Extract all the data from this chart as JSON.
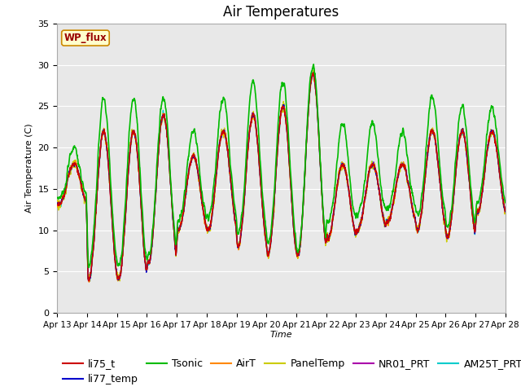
{
  "title": "Air Temperatures",
  "xlabel": "Time",
  "ylabel": "Air Temperature (C)",
  "ylim": [
    0,
    35
  ],
  "yticks": [
    0,
    5,
    10,
    15,
    20,
    25,
    30,
    35
  ],
  "x_tick_labels": [
    "Apr 13",
    "Apr 14",
    "Apr 15",
    "Apr 16",
    "Apr 17",
    "Apr 18",
    "Apr 19",
    "Apr 20",
    "Apr 21",
    "Apr 22",
    "Apr 23",
    "Apr 24",
    "Apr 25",
    "Apr 26",
    "Apr 27",
    "Apr 28"
  ],
  "series": {
    "li75_t": {
      "color": "#cc0000",
      "lw": 1.0,
      "zorder": 3
    },
    "li77_temp": {
      "color": "#0000cc",
      "lw": 1.0,
      "zorder": 3
    },
    "Tsonic": {
      "color": "#00bb00",
      "lw": 1.2,
      "zorder": 4
    },
    "AirT": {
      "color": "#ff8800",
      "lw": 1.0,
      "zorder": 3
    },
    "PanelTemp": {
      "color": "#cccc00",
      "lw": 1.0,
      "zorder": 3
    },
    "NR01_PRT": {
      "color": "#aa00aa",
      "lw": 1.0,
      "zorder": 3
    },
    "AM25T_PRT": {
      "color": "#00cccc",
      "lw": 1.0,
      "zorder": 2
    }
  },
  "wp_flux_label": "WP_flux",
  "wp_flux_color": "#990000",
  "axes_background": "#e8e8e8",
  "figure_background": "#ffffff",
  "grid_color": "#ffffff",
  "legend_fontsize": 9,
  "title_fontsize": 12,
  "n_days": 15,
  "day_mins": [
    13,
    4,
    4,
    6,
    10,
    10,
    8,
    7,
    7,
    9,
    10,
    11,
    10,
    9,
    12
  ],
  "day_maxs": [
    18,
    22,
    22,
    24,
    19,
    22,
    24,
    25,
    29,
    18,
    18,
    18,
    22,
    22,
    22
  ],
  "tsonic_day_offsets": [
    2,
    4,
    4,
    2,
    3,
    4,
    4,
    3,
    1,
    5,
    5,
    4,
    4,
    3,
    3
  ]
}
